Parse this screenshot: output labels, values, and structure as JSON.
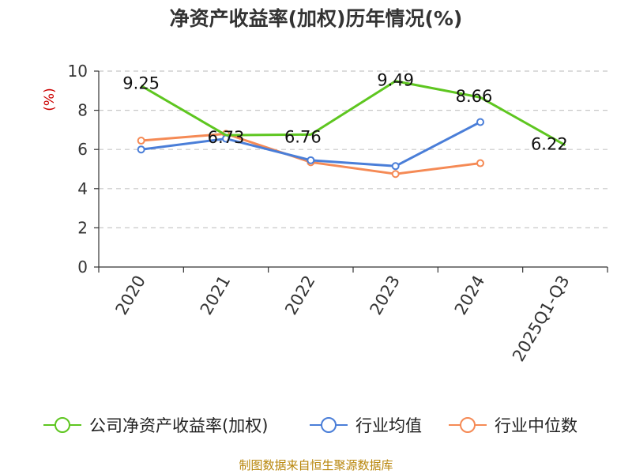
{
  "title": "净资产收益率(加权)历年情况(%)",
  "source": "制图数据来自恒生聚源数据库",
  "colors": {
    "company": "#5ec620",
    "industry_avg": "#4a7ed8",
    "industry_median": "#f58a55"
  },
  "chart_data": {
    "type": "line",
    "ylabel": "(%)",
    "ylim": [
      0,
      10
    ],
    "yticks": [
      "0",
      "2",
      "4",
      "6",
      "8",
      "10"
    ],
    "grid": "dashed horizontal",
    "categories": [
      "2020",
      "2021",
      "2022",
      "2023",
      "2024",
      "2025Q1-Q3"
    ],
    "series": [
      {
        "name": "公司净资产收益率(加权)",
        "values": [
          9.25,
          6.73,
          6.76,
          9.49,
          8.66,
          6.22
        ],
        "labels": [
          "9.25",
          "6.73",
          "6.76",
          "9.49",
          "8.66",
          "6.22"
        ],
        "color": "#5ec620",
        "markers": false
      },
      {
        "name": "行业均值",
        "values": [
          6.0,
          6.55,
          5.45,
          5.15,
          7.4,
          null
        ],
        "color": "#4a7ed8",
        "markers": true
      },
      {
        "name": "行业中位数",
        "values": [
          6.45,
          6.8,
          5.35,
          4.75,
          5.3,
          null
        ],
        "color": "#f58a55",
        "markers": true
      }
    ],
    "legend": "bottom"
  }
}
